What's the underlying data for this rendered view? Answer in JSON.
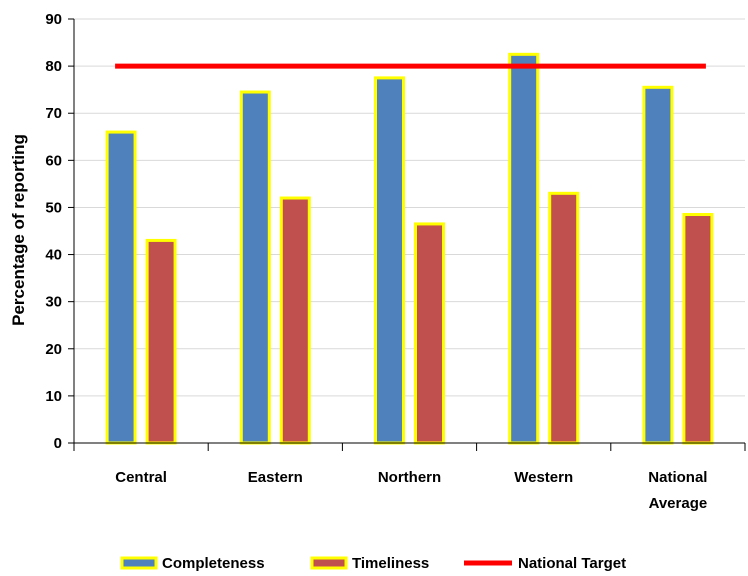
{
  "chart_data": {
    "type": "bar",
    "title": "",
    "xlabel": "",
    "ylabel": "Percentage of reporting",
    "ylim": [
      0,
      90
    ],
    "yticks": [
      0,
      10,
      20,
      30,
      40,
      50,
      60,
      70,
      80,
      90
    ],
    "grid": true,
    "legend_position": "bottom",
    "categories": [
      [
        "Central"
      ],
      [
        "Eastern"
      ],
      [
        "Northern"
      ],
      [
        "Western"
      ],
      [
        "National",
        "Average"
      ]
    ],
    "series": [
      {
        "name": "Completeness",
        "values": [
          66,
          74.5,
          77.5,
          82.5,
          75.5
        ],
        "color": "#4f81bd",
        "outline": "#ffff00"
      },
      {
        "name": "Timeliness",
        "values": [
          43,
          52,
          46.5,
          53,
          48.5
        ],
        "color": "#c0504d",
        "outline": "#ffff00"
      }
    ],
    "target_line": {
      "name": "National Target",
      "value": 80,
      "color": "#ff0000"
    }
  }
}
